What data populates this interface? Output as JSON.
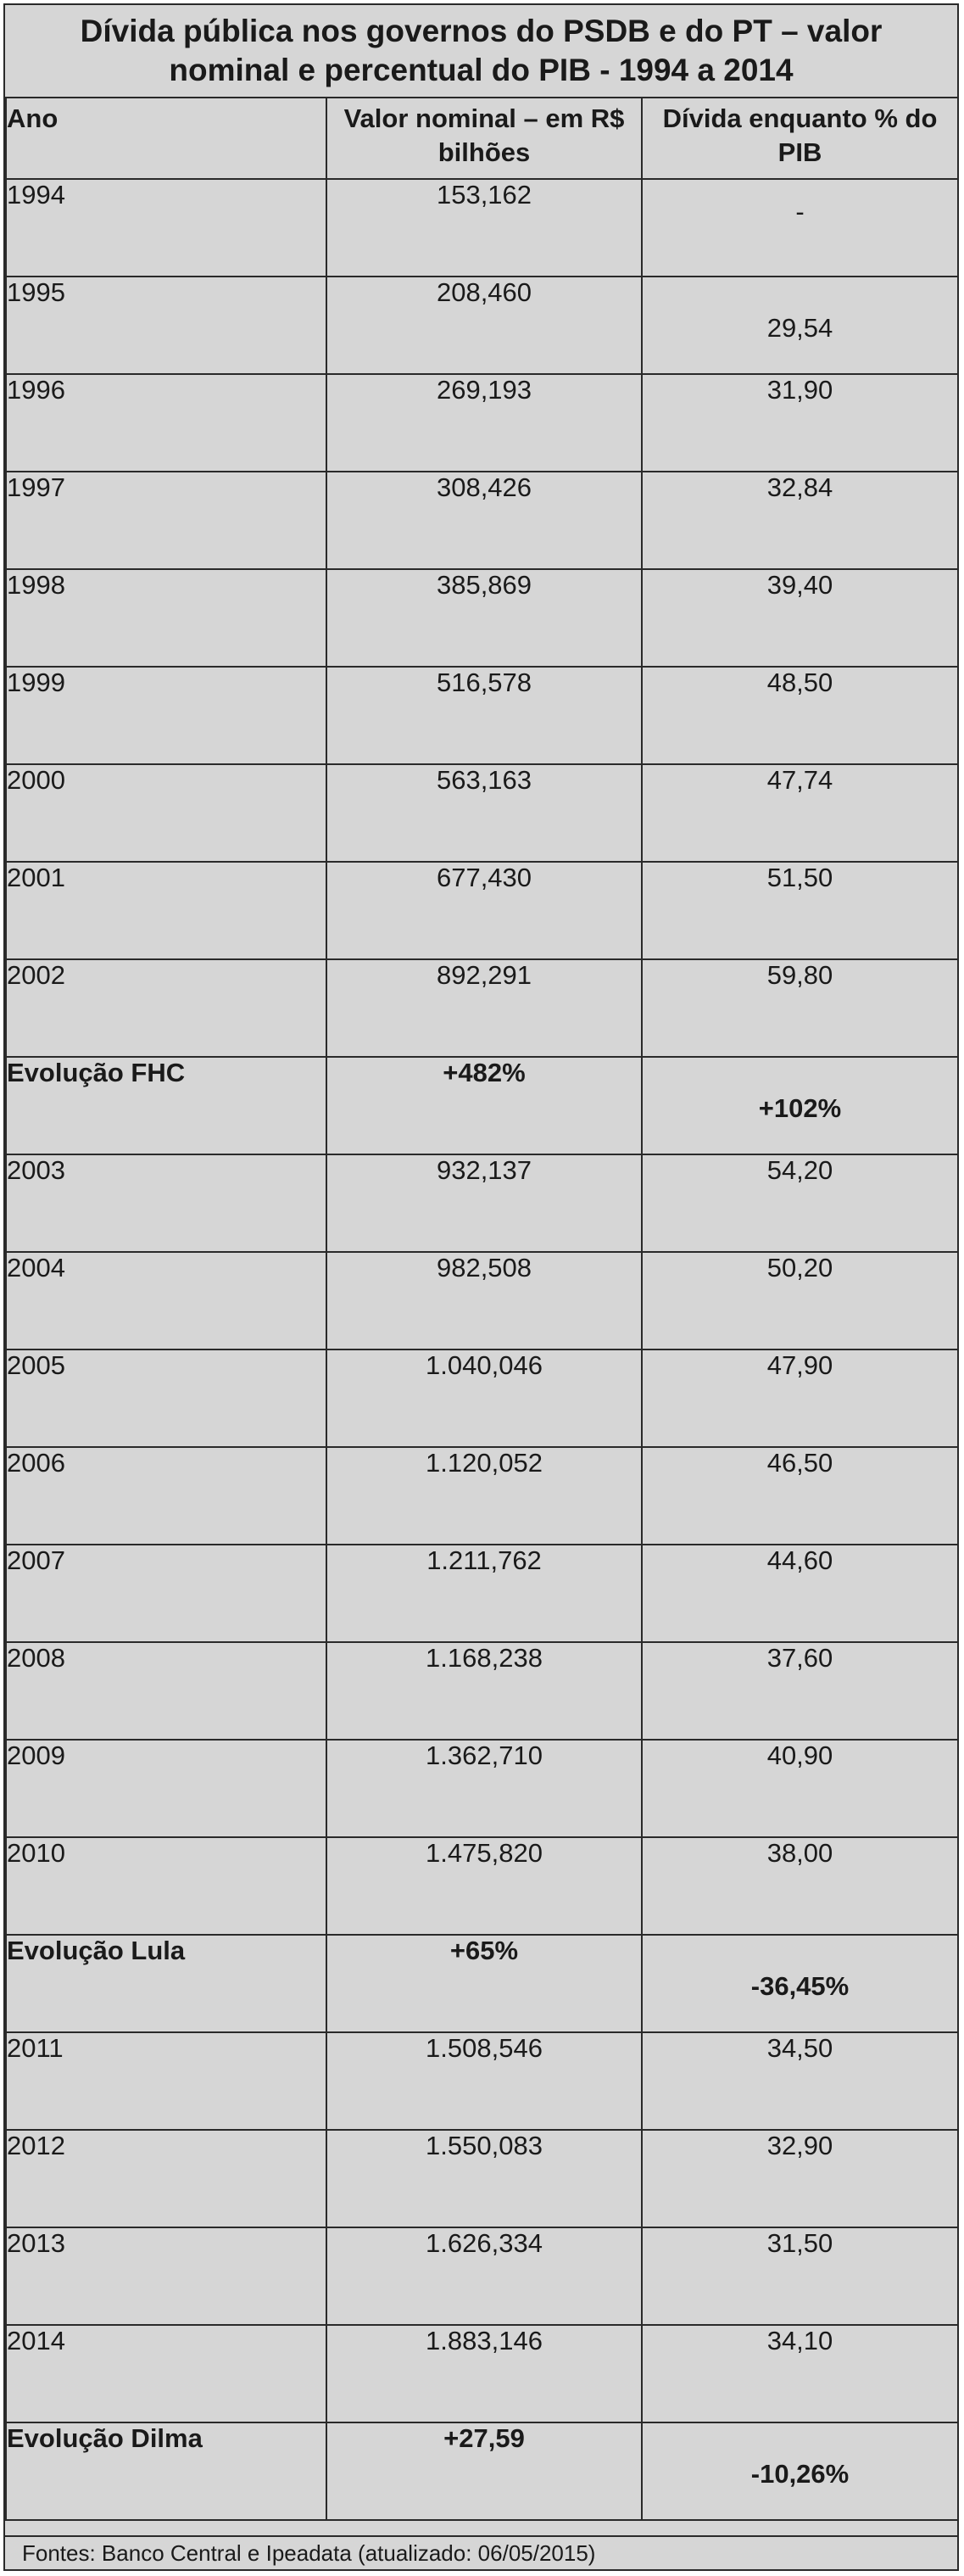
{
  "title": "Dívida pública nos governos do PSDB e do PT – valor nominal e percentual do PIB - 1994 a 2014",
  "headers": {
    "year": "Ano",
    "nominal": "Valor nominal – em R$ bilhões",
    "pct": "Dívida enquanto % do PIB"
  },
  "rows": [
    {
      "year": "1994",
      "nominal": "153,162",
      "pct": "-"
    },
    {
      "year": "1995",
      "nominal": "208,460",
      "pct": "29,54"
    },
    {
      "year": "1996",
      "nominal": "269,193",
      "pct": "31,90"
    },
    {
      "year": "1997",
      "nominal": "308,426",
      "pct": "32,84"
    },
    {
      "year": "1998",
      "nominal": "385,869",
      "pct": "39,40"
    },
    {
      "year": "1999",
      "nominal": "516,578",
      "pct": "48,50"
    },
    {
      "year": "2000",
      "nominal": "563,163",
      "pct": "47,74"
    },
    {
      "year": "2001",
      "nominal": "677,430",
      "pct": "51,50"
    },
    {
      "year": "2002",
      "nominal": "892,291",
      "pct": "59,80"
    },
    {
      "year": "Evolução FHC",
      "nominal": "+482%",
      "pct": "+102%"
    },
    {
      "year": "2003",
      "nominal": "932,137",
      "pct": "54,20"
    },
    {
      "year": "2004",
      "nominal": "982,508",
      "pct": "50,20"
    },
    {
      "year": "2005",
      "nominal": "1.040,046",
      "pct": "47,90"
    },
    {
      "year": "2006",
      "nominal": "1.120,052",
      "pct": "46,50"
    },
    {
      "year": "2007",
      "nominal": "1.211,762",
      "pct": "44,60"
    },
    {
      "year": "2008",
      "nominal": "1.168,238",
      "pct": "37,60"
    },
    {
      "year": "2009",
      "nominal": "1.362,710",
      "pct": "40,90"
    },
    {
      "year": "2010",
      "nominal": "1.475,820",
      "pct": "38,00"
    },
    {
      "year": "Evolução Lula",
      "nominal": "+65%",
      "pct": "-36,45%"
    },
    {
      "year": "2011",
      "nominal": "1.508,546",
      "pct": "34,50"
    },
    {
      "year": "2012",
      "nominal": "1.550,083",
      "pct": "32,90"
    },
    {
      "year": "2013",
      "nominal": "1.626,334",
      "pct": "31,50"
    },
    {
      "year": "2014",
      "nominal": "1.883,146",
      "pct": "34,10"
    },
    {
      "year": "Evolução Dilma",
      "nominal": "+27,59",
      "pct": "-10,26%"
    }
  ],
  "source": "Fontes: Banco Central e Ipeadata (atualizado: 06/05/2015)"
}
